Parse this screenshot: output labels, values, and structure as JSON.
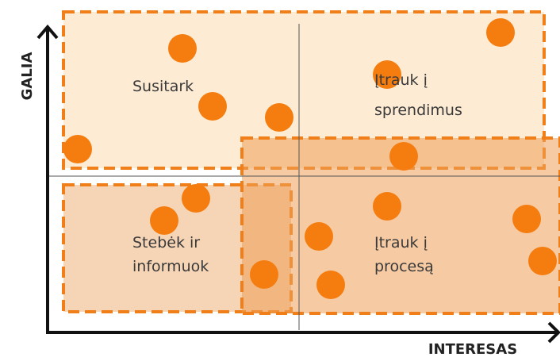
{
  "axes": {
    "y_label": "GALIA",
    "x_label": "INTERESAS"
  },
  "quadrants": [
    {
      "lines": [
        "Susitark"
      ]
    },
    {
      "lines": [
        "Įtrauk į",
        "sprendimus"
      ]
    },
    {
      "lines": [
        "Stebėk ir",
        "informuok"
      ]
    },
    {
      "lines": [
        "Įtrauk į",
        "procesą"
      ]
    }
  ]
}
